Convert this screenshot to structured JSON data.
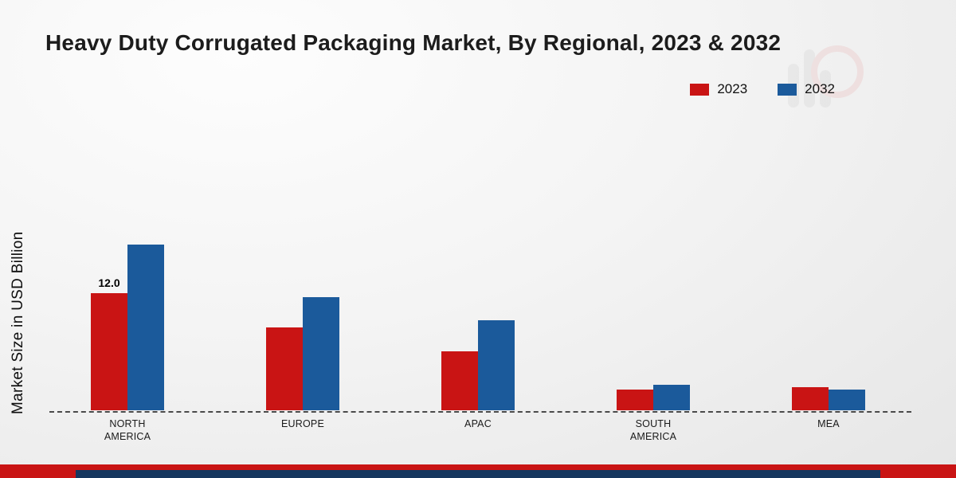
{
  "title": "Heavy Duty Corrugated Packaging Market, By Regional, 2023 & 2032",
  "ylabel": "Market Size in USD Billion",
  "legend": [
    {
      "label": "2023",
      "color": "#c91414"
    },
    {
      "label": "2032",
      "color": "#1b5a9b"
    }
  ],
  "chart_data": {
    "type": "bar",
    "title": "Heavy Duty Corrugated Packaging Market, By Regional, 2023 & 2032",
    "xlabel": "",
    "ylabel": "Market Size in USD Billion",
    "categories": [
      "NORTH AMERICA",
      "EUROPE",
      "APAC",
      "SOUTH AMERICA",
      "MEA"
    ],
    "series": [
      {
        "name": "2023",
        "color": "#c91414",
        "values": [
          12.0,
          8.5,
          6.0,
          2.1,
          2.4
        ]
      },
      {
        "name": "2032",
        "color": "#1b5a9b",
        "values": [
          17.0,
          11.6,
          9.2,
          2.6,
          2.1
        ]
      }
    ],
    "annotations": [
      {
        "category_index": 0,
        "series_index": 0,
        "text": "12.0"
      }
    ],
    "ylim": [
      0,
      20
    ],
    "grid": false,
    "legend_position": "top-right",
    "baseline_style": "dashed"
  },
  "footer": {
    "red_strip_color": "#c91414",
    "navy_strip_color": "#15365e"
  }
}
